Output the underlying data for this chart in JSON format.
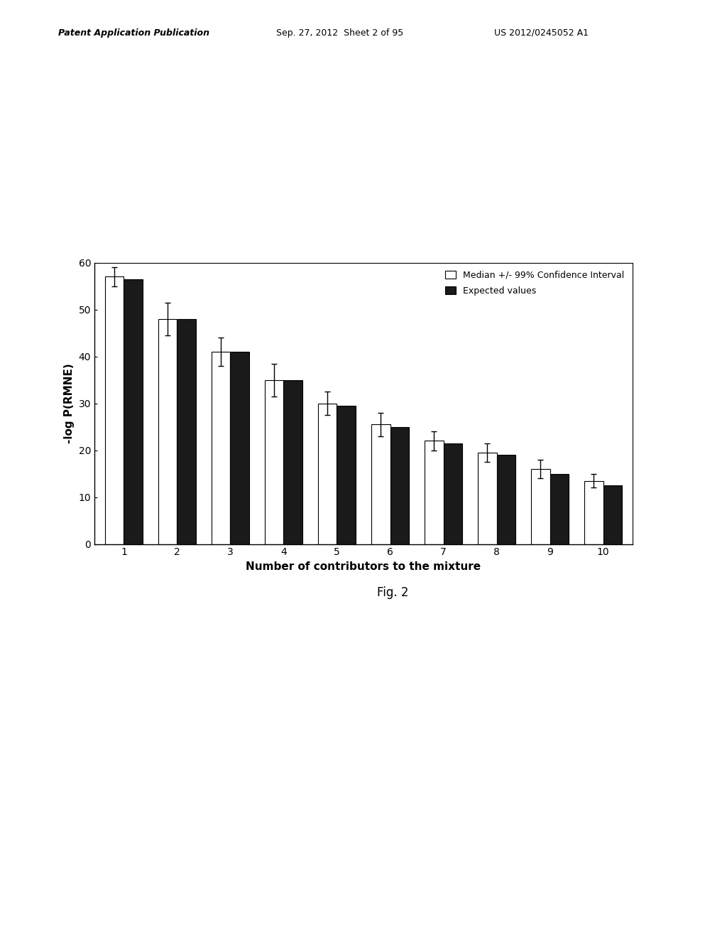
{
  "contributors": [
    1,
    2,
    3,
    4,
    5,
    6,
    7,
    8,
    9,
    10
  ],
  "median_values": [
    57.0,
    48.0,
    41.0,
    35.0,
    30.0,
    25.5,
    22.0,
    19.5,
    16.0,
    13.5
  ],
  "expected_values": [
    56.5,
    48.0,
    41.0,
    35.0,
    29.5,
    25.0,
    21.5,
    19.0,
    15.0,
    12.5
  ],
  "error_bars": [
    2.0,
    3.5,
    3.0,
    3.5,
    2.5,
    2.5,
    2.0,
    2.0,
    2.0,
    1.5
  ],
  "median_color": "#ffffff",
  "expected_color": "#1a1a1a",
  "bar_edge_color": "#000000",
  "ylabel": "-log P(RMNE)",
  "xlabel": "Number of contributors to the mixture",
  "ylim": [
    0,
    60
  ],
  "yticks": [
    0,
    10,
    20,
    30,
    40,
    50,
    60
  ],
  "legend_median": "Median +/- 99% Confidence Interval",
  "legend_expected": "Expected values",
  "background_color": "#ffffff",
  "header_left": "Patent Application Publication",
  "header_center": "Sep. 27, 2012  Sheet 2 of 95",
  "header_right": "US 2012/0245052 A1",
  "fig2_label": "Fig. 2",
  "bar_width": 0.35
}
